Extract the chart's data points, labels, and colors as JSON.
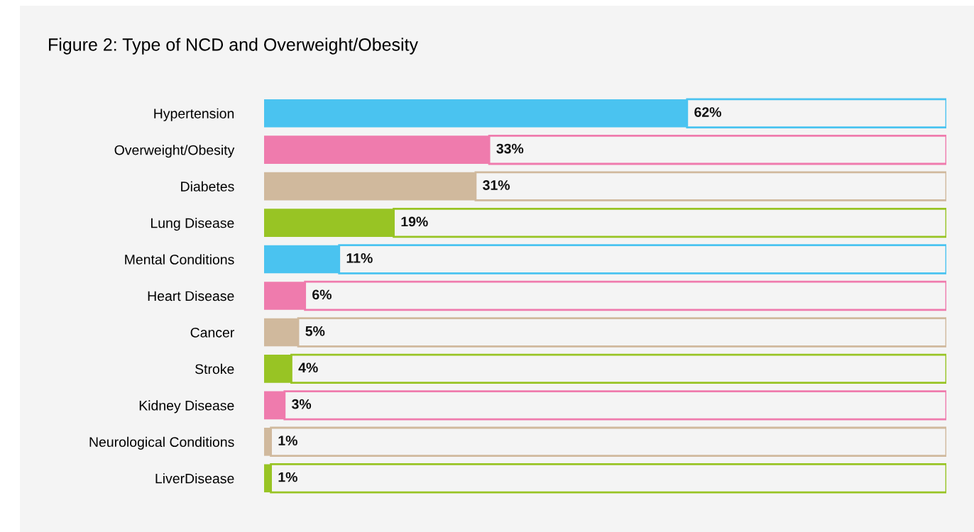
{
  "chart_data": {
    "type": "bar",
    "orientation": "horizontal",
    "stacked": true,
    "title": "Figure 2: Type of NCD and Overweight/Obesity",
    "categories": [
      "Hypertension",
      "Overweight/Obesity",
      "Diabetes",
      "Lung Disease",
      "Mental Conditions",
      "Heart Disease",
      "Cancer",
      "Stroke",
      "Kidney Disease",
      "Neurological Conditions",
      "LiverDisease"
    ],
    "series": [
      {
        "values": [
          62,
          33,
          31,
          19,
          11,
          6,
          5,
          4,
          3,
          1,
          1
        ],
        "value_labels": [
          "62%",
          "33%",
          "31%",
          "19%",
          "11%",
          "6%",
          "5%",
          "4%",
          "3%",
          "1%",
          "1%"
        ],
        "colors": [
          "#4ac3f0",
          "#ef7bad",
          "#d0b99d",
          "#98c424",
          "#4ac3f0",
          "#ef7bad",
          "#d0b99d",
          "#98c424",
          "#ef7bad",
          "#d0b99d",
          "#98c424"
        ]
      },
      {
        "values": [
          38,
          67,
          69,
          81,
          89,
          94,
          95,
          96,
          97,
          99,
          99
        ],
        "colors": [
          "#4ac3f0",
          "#ef7bad",
          "#d0b99d",
          "#98c424",
          "#4ac3f0",
          "#ef7bad",
          "#d0b99d",
          "#98c424",
          "#ef7bad",
          "#d0b99d",
          "#98c424"
        ]
      }
    ],
    "xlim": [
      0,
      100
    ],
    "tick_labels": "y"
  }
}
